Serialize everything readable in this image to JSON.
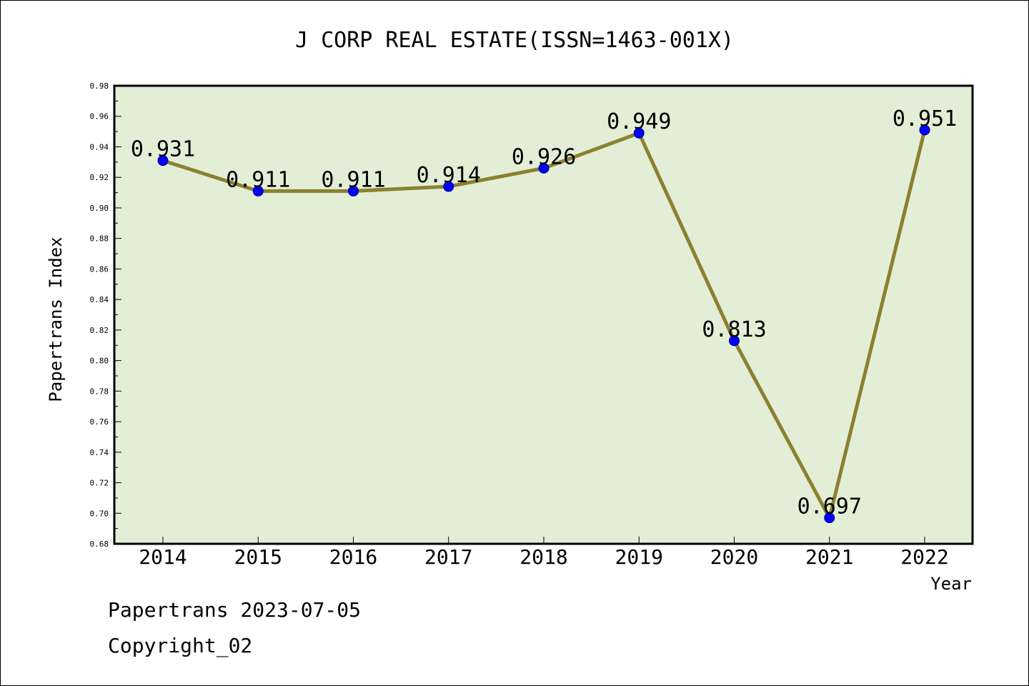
{
  "chart_data": {
    "type": "line",
    "title": "J CORP REAL ESTATE(ISSN=1463-001X)",
    "xlabel": "Year",
    "ylabel": "Papertrans Index",
    "categories": [
      "2014",
      "2015",
      "2016",
      "2017",
      "2018",
      "2019",
      "2020",
      "2021",
      "2022"
    ],
    "values": [
      0.931,
      0.911,
      0.911,
      0.914,
      0.926,
      0.949,
      0.813,
      0.697,
      0.951
    ],
    "data_labels": [
      "0.931",
      "0.911",
      "0.911",
      "0.914",
      "0.926",
      "0.949",
      "0.813",
      "0.697",
      "0.951"
    ],
    "ylim": [
      0.68,
      0.98
    ],
    "y_ticks": [
      "0.68",
      "0.70",
      "0.72",
      "0.74",
      "0.76",
      "0.78",
      "0.80",
      "0.82",
      "0.84",
      "0.86",
      "0.88",
      "0.90",
      "0.92",
      "0.94",
      "0.96",
      "0.98"
    ],
    "grid": false,
    "legend": "none",
    "colors": {
      "plot_background": "#e2efd6",
      "line": "#8c8030",
      "marker": "#0000ff"
    }
  },
  "footer": {
    "source_line": "Papertrans 2023-07-05",
    "copyright_line": "Copyright_02"
  }
}
